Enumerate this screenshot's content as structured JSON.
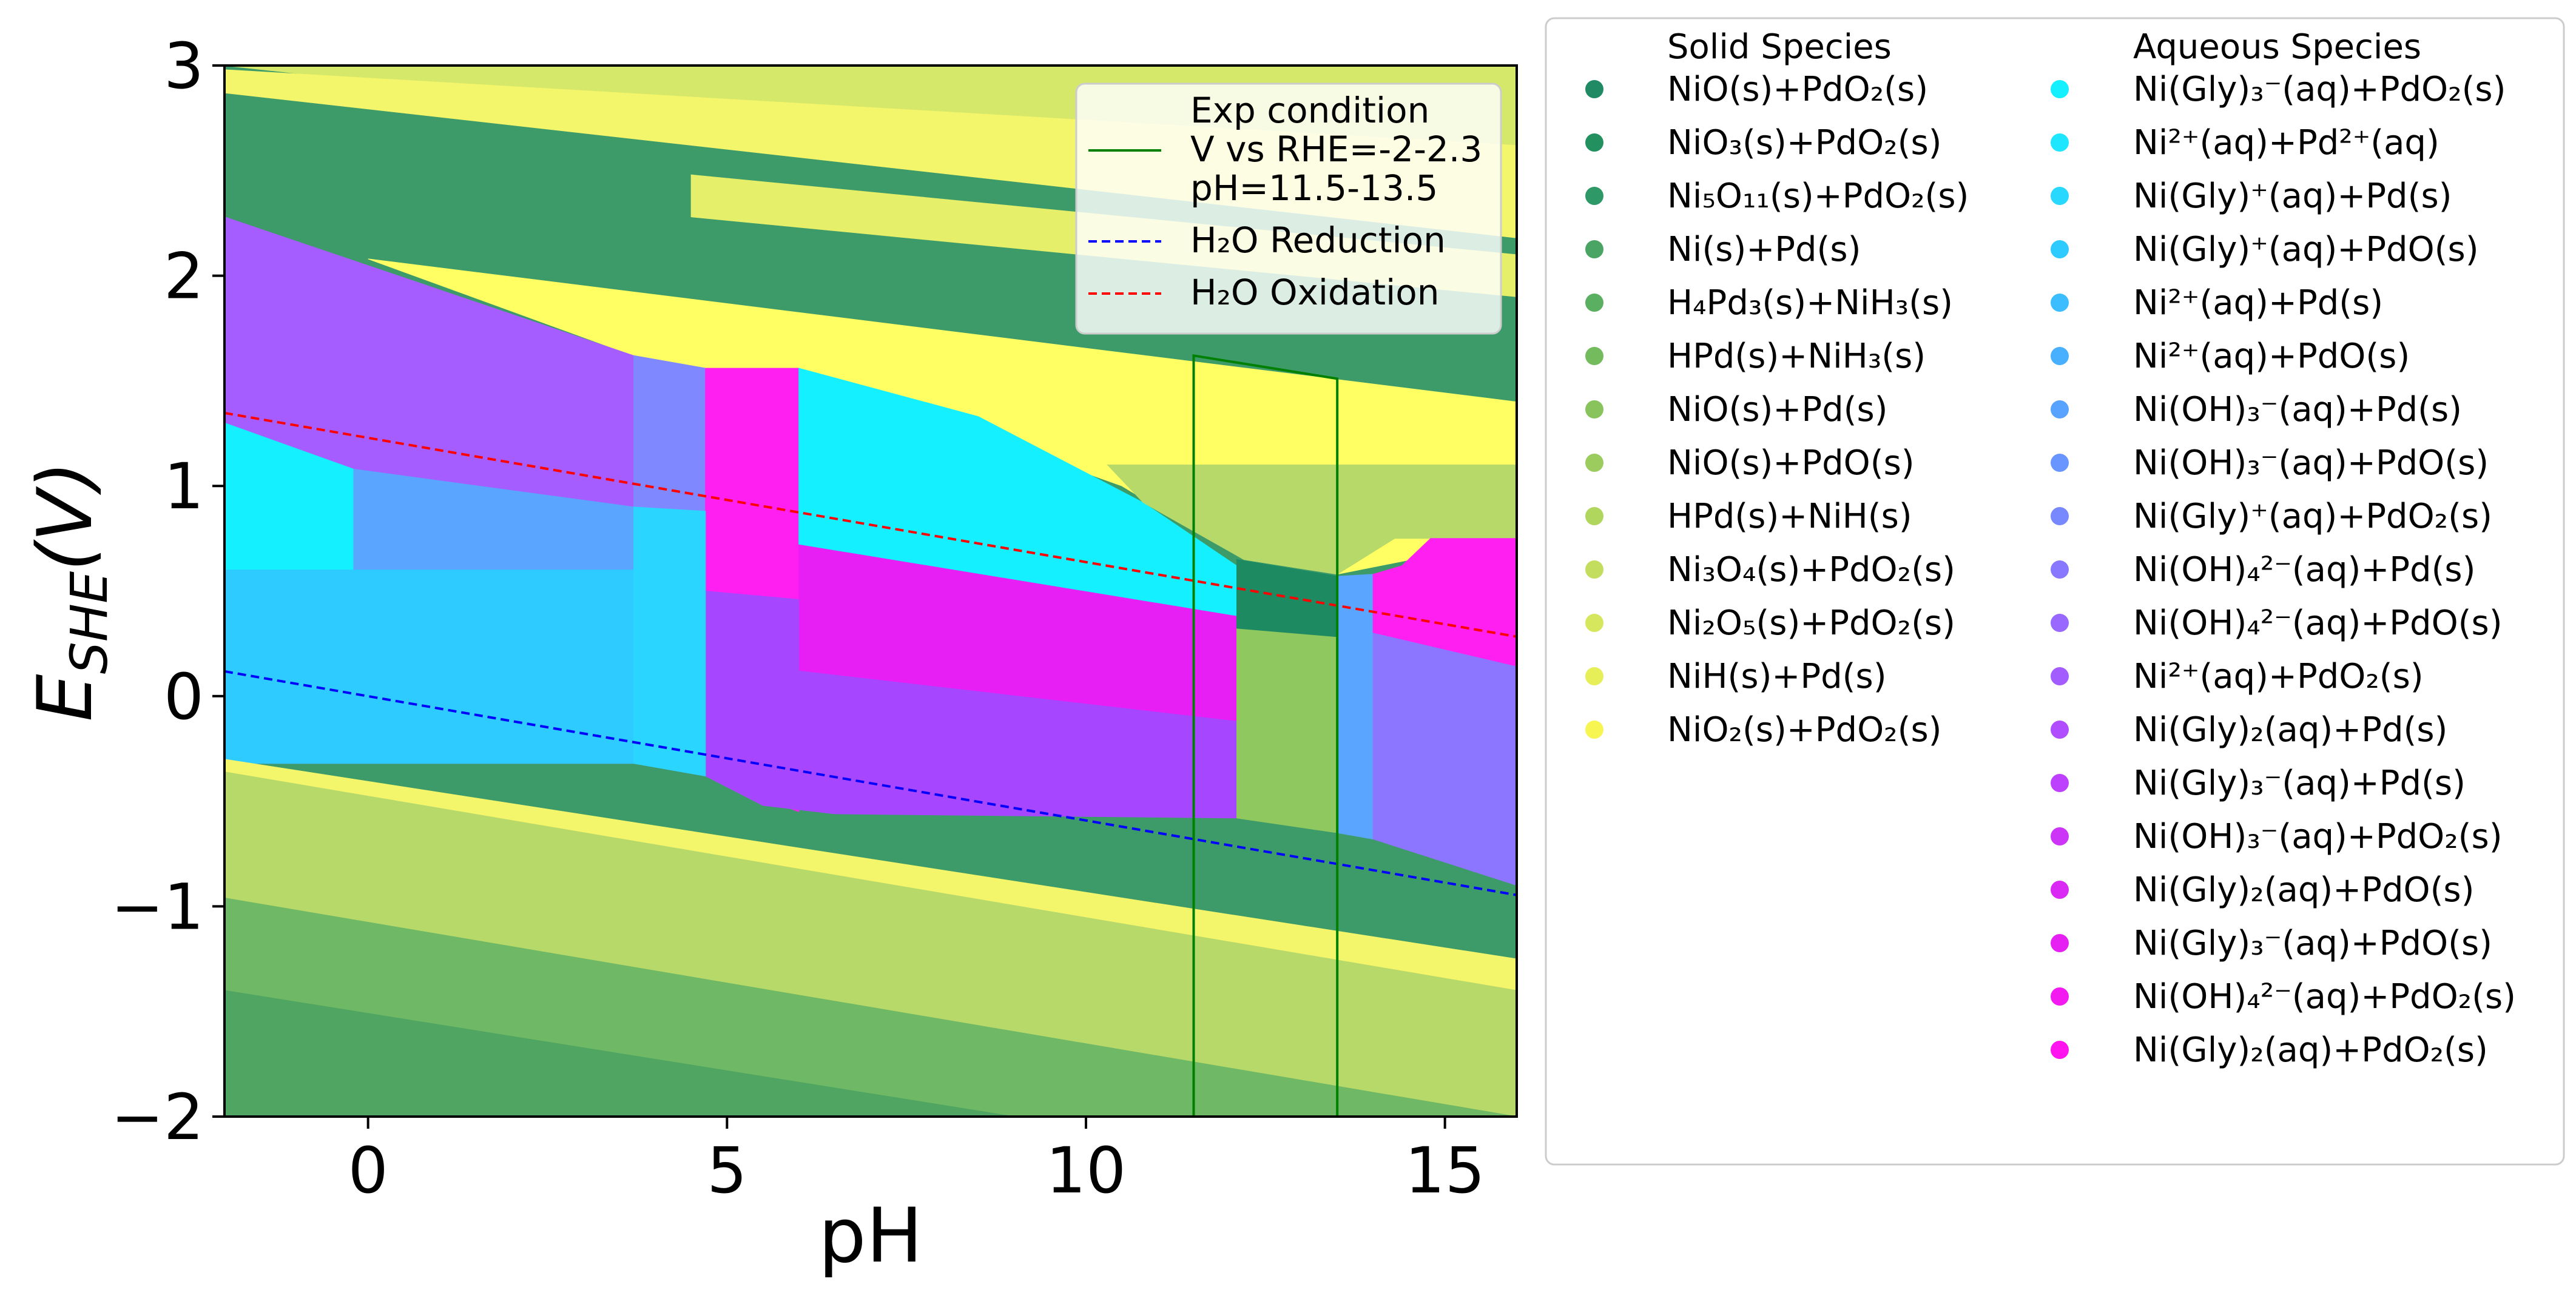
{
  "chart_data": {
    "type": "area",
    "xlabel": "pH",
    "ylabel_main": "E",
    "ylabel_sub": "SHE",
    "ylabel_tail": "(V)",
    "xlim": [
      -2,
      16
    ],
    "ylim": [
      -2,
      3
    ],
    "xticks": [
      {
        "v": 0,
        "t": "0"
      },
      {
        "v": 5,
        "t": "5"
      },
      {
        "v": 10,
        "t": "10"
      },
      {
        "v": 15,
        "t": "15"
      }
    ],
    "yticks": [
      {
        "v": -2,
        "t": "−2"
      },
      {
        "v": -1,
        "t": "−1"
      },
      {
        "v": 0,
        "t": "0"
      },
      {
        "v": 1,
        "t": "1"
      },
      {
        "v": 2,
        "t": "2"
      },
      {
        "v": 3,
        "t": "3"
      }
    ],
    "regions": [
      {
        "color": "#3d9b69",
        "pts": [
          [
            -2,
            3
          ],
          [
            16,
            3
          ],
          [
            16,
            -2
          ],
          [
            -2,
            -2
          ]
        ]
      },
      {
        "color": "#d6e86a",
        "pts": [
          [
            -2,
            3
          ],
          [
            16,
            3
          ],
          [
            16,
            2.33
          ],
          [
            -2,
            3
          ]
        ]
      },
      {
        "color": "#f3f56b",
        "pts": [
          [
            -2,
            2.98
          ],
          [
            16,
            2.62
          ],
          [
            16,
            2.18
          ],
          [
            -2,
            2.87
          ]
        ]
      },
      {
        "color": "#e5ef6a",
        "pts": [
          [
            4.5,
            2.48
          ],
          [
            16,
            2.1
          ],
          [
            16,
            1.9
          ],
          [
            4.5,
            2.28
          ]
        ]
      },
      {
        "color": "#ffff64",
        "pts": [
          [
            0,
            2.08
          ],
          [
            16,
            1.4
          ],
          [
            16,
            0.75
          ],
          [
            13.5,
            0.58
          ],
          [
            12.2,
            0.65
          ],
          [
            10.5,
            1.0
          ],
          [
            6,
            1.55
          ],
          [
            4.7,
            1.55
          ],
          [
            3.7,
            1.62
          ],
          [
            0,
            2.08
          ]
        ]
      },
      {
        "color": "#a65dff",
        "pts": [
          [
            -2,
            2.28
          ],
          [
            3.7,
            1.62
          ],
          [
            3.7,
            -0.32
          ],
          [
            -2,
            -0.32
          ]
        ]
      },
      {
        "color": "#8088ff",
        "pts": [
          [
            3.7,
            1.62
          ],
          [
            4.7,
            1.56
          ],
          [
            4.7,
            -0.38
          ],
          [
            3.7,
            -0.32
          ]
        ]
      },
      {
        "color": "#ff1ff0",
        "pts": [
          [
            4.7,
            1.56
          ],
          [
            6,
            1.56
          ],
          [
            6,
            -0.55
          ],
          [
            4.7,
            -0.38
          ]
        ]
      },
      {
        "color": "#14f0ff",
        "pts": [
          [
            6,
            1.56
          ],
          [
            8.5,
            1.33
          ],
          [
            10.8,
            0.92
          ],
          [
            12.1,
            0.62
          ],
          [
            12.1,
            0.38
          ],
          [
            6,
            0.72
          ]
        ]
      },
      {
        "color": "#b7d96a",
        "pts": [
          [
            10.3,
            1.1
          ],
          [
            16,
            1.1
          ],
          [
            16,
            0.75
          ],
          [
            14.3,
            0.75
          ],
          [
            13.5,
            0.58
          ],
          [
            12.2,
            0.65
          ],
          [
            10.8,
            0.92
          ]
        ]
      },
      {
        "color": "#e81ff5",
        "pts": [
          [
            6,
            0.72
          ],
          [
            12.1,
            0.38
          ],
          [
            12.1,
            -0.12
          ],
          [
            6,
            0.12
          ]
        ]
      },
      {
        "color": "#a646ff",
        "pts": [
          [
            4.7,
            0.5
          ],
          [
            6,
            0.46
          ],
          [
            6,
            0.12
          ],
          [
            12.1,
            -0.12
          ],
          [
            12.1,
            -0.58
          ],
          [
            6.5,
            -0.56
          ],
          [
            5.5,
            -0.52
          ],
          [
            4.7,
            -0.38
          ]
        ]
      },
      {
        "color": "#14f0ff",
        "pts": [
          [
            -2,
            1.3
          ],
          [
            -0.2,
            1.08
          ],
          [
            -0.2,
            0.6
          ],
          [
            -2,
            0.6
          ]
        ]
      },
      {
        "color": "#5aa5ff",
        "pts": [
          [
            -0.2,
            1.08
          ],
          [
            3.7,
            0.9
          ],
          [
            3.7,
            0.6
          ],
          [
            -0.2,
            0.6
          ]
        ]
      },
      {
        "color": "#2dcbff",
        "pts": [
          [
            -2,
            0.6
          ],
          [
            3.7,
            0.6
          ],
          [
            3.7,
            -0.32
          ],
          [
            -2,
            -0.32
          ]
        ]
      },
      {
        "color": "#2ad5ff",
        "pts": [
          [
            3.7,
            0.9
          ],
          [
            4.7,
            0.88
          ],
          [
            4.7,
            -0.38
          ],
          [
            3.7,
            -0.32
          ]
        ]
      },
      {
        "color": "#1d8a62",
        "pts": [
          [
            12.1,
            0.65
          ],
          [
            13.5,
            0.57
          ],
          [
            13.5,
            0.28
          ],
          [
            12.1,
            0.32
          ]
        ]
      },
      {
        "color": "#8fc85e",
        "pts": [
          [
            12.1,
            0.32
          ],
          [
            13.5,
            0.28
          ],
          [
            13.5,
            -0.65
          ],
          [
            12.1,
            -0.58
          ]
        ]
      },
      {
        "color": "#5aa5ff",
        "pts": [
          [
            13.5,
            0.57
          ],
          [
            14.0,
            0.58
          ],
          [
            14.0,
            -0.68
          ],
          [
            13.5,
            -0.65
          ]
        ]
      },
      {
        "color": "#a646ff",
        "pts": [
          [
            14.0,
            0.58
          ],
          [
            16,
            0.4
          ],
          [
            16,
            0.14
          ],
          [
            14.0,
            0.3
          ]
        ]
      },
      {
        "color": "#ff1ff0",
        "pts": [
          [
            14.0,
            0.58
          ],
          [
            14.4,
            0.62
          ],
          [
            14.8,
            0.75
          ],
          [
            16,
            0.75
          ],
          [
            16,
            0.14
          ],
          [
            14.0,
            0.3
          ]
        ]
      },
      {
        "color": "#8c75ff",
        "pts": [
          [
            14.0,
            0.3
          ],
          [
            16,
            0.14
          ],
          [
            16,
            -0.9
          ],
          [
            14.0,
            -0.68
          ]
        ]
      },
      {
        "color": "#f3f56b",
        "pts": [
          [
            -2,
            -0.3
          ],
          [
            16,
            -1.25
          ],
          [
            16,
            -1.4
          ],
          [
            -2,
            -0.36
          ]
        ]
      },
      {
        "color": "#b7d96a",
        "pts": [
          [
            -2,
            -0.36
          ],
          [
            16,
            -1.4
          ],
          [
            16,
            -2
          ],
          [
            -2,
            -2
          ]
        ]
      },
      {
        "color": "#6fb865",
        "pts": [
          [
            -2,
            -0.96
          ],
          [
            16,
            -2
          ],
          [
            -2,
            -2
          ]
        ]
      },
      {
        "color": "#4fa561",
        "pts": [
          [
            -2,
            -1.4
          ],
          [
            9,
            -2
          ],
          [
            -2,
            -2
          ]
        ]
      }
    ],
    "lines": [
      {
        "name": "H₂O Reduction",
        "color": "#0000ff",
        "dash": true,
        "pts": [
          [
            -2,
            0.118
          ],
          [
            16,
            -0.946
          ]
        ]
      },
      {
        "name": "H₂O Oxidation",
        "color": "#ff0000",
        "dash": true,
        "pts": [
          [
            -2,
            1.347
          ],
          [
            16,
            0.283
          ]
        ]
      },
      {
        "name": "Exp condition",
        "color": "#008000",
        "dash": false,
        "pts": [
          [
            11.5,
            -2
          ],
          [
            11.5,
            1.62
          ],
          [
            13.5,
            1.51
          ],
          [
            13.5,
            -2
          ]
        ]
      }
    ],
    "inner_legend": [
      {
        "lines": [
          "Exp condition",
          "V vs RHE=-2-2.3",
          "pH=11.5-13.5"
        ],
        "color": "#008000",
        "dash": false
      },
      {
        "lines": [
          "H₂O Reduction"
        ],
        "color": "#0000ff",
        "dash": true
      },
      {
        "lines": [
          "H₂O Oxidation"
        ],
        "color": "#ff0000",
        "dash": true
      }
    ],
    "legend": {
      "solid_title": "Solid Species",
      "aqueous_title": "Aqueous Species",
      "solid": [
        {
          "label": "NiO(s)+PdO₂(s)",
          "color": "#1f8a63"
        },
        {
          "label": "NiO₃(s)+PdO₂(s)",
          "color": "#23905f"
        },
        {
          "label": "Ni₅O₁₁(s)+PdO₂(s)",
          "color": "#2e9866"
        },
        {
          "label": "Ni(s)+Pd(s)",
          "color": "#4aa463"
        },
        {
          "label": "H₄Pd₃(s)+NiH₃(s)",
          "color": "#5aaf60"
        },
        {
          "label": "HPd(s)+NiH₃(s)",
          "color": "#74bb5d"
        },
        {
          "label": "NiO(s)+Pd(s)",
          "color": "#88c35b"
        },
        {
          "label": "NiO(s)+PdO(s)",
          "color": "#9ccb5e"
        },
        {
          "label": "HPd(s)+NiH(s)",
          "color": "#b0d65d"
        },
        {
          "label": "Ni₃O₄(s)+PdO₂(s)",
          "color": "#c3de5e"
        },
        {
          "label": "Ni₂O₅(s)+PdO₂(s)",
          "color": "#d6e75e"
        },
        {
          "label": "NiH(s)+Pd(s)",
          "color": "#e7ef58"
        },
        {
          "label": "NiO₂(s)+PdO₂(s)",
          "color": "#f7f552"
        }
      ],
      "aqueous": [
        {
          "label": "Ni(Gly)₃⁻(aq)+PdO₂(s)",
          "color": "#14f0ff"
        },
        {
          "label": "Ni²⁺(aq)+Pd²⁺(aq)",
          "color": "#1ee6ff"
        },
        {
          "label": "Ni(Gly)⁺(aq)+Pd(s)",
          "color": "#28d8ff"
        },
        {
          "label": "Ni(Gly)⁺(aq)+PdO(s)",
          "color": "#2dcbff"
        },
        {
          "label": "Ni²⁺(aq)+Pd(s)",
          "color": "#3cbdff"
        },
        {
          "label": "Ni²⁺(aq)+PdO(s)",
          "color": "#48b0ff"
        },
        {
          "label": "Ni(OH)₃⁻(aq)+Pd(s)",
          "color": "#58a3ff"
        },
        {
          "label": "Ni(OH)₃⁻(aq)+PdO(s)",
          "color": "#6895ff"
        },
        {
          "label": "Ni(Gly)⁺(aq)+PdO₂(s)",
          "color": "#7888ff"
        },
        {
          "label": "Ni(OH)₄²⁻(aq)+Pd(s)",
          "color": "#8878ff"
        },
        {
          "label": "Ni(OH)₄²⁻(aq)+PdO(s)",
          "color": "#9868ff"
        },
        {
          "label": "Ni²⁺(aq)+PdO₂(s)",
          "color": "#a25cff"
        },
        {
          "label": "Ni(Gly)₂(aq)+Pd(s)",
          "color": "#b04eff"
        },
        {
          "label": "Ni(Gly)₃⁻(aq)+Pd(s)",
          "color": "#be40ff"
        },
        {
          "label": "Ni(OH)₃⁻(aq)+PdO₂(s)",
          "color": "#cc34f8"
        },
        {
          "label": "Ni(Gly)₂(aq)+PdO(s)",
          "color": "#da28f5"
        },
        {
          "label": "Ni(Gly)₃⁻(aq)+PdO(s)",
          "color": "#e620f2"
        },
        {
          "label": "Ni(OH)₄²⁻(aq)+PdO₂(s)",
          "color": "#f21af0"
        },
        {
          "label": "Ni(Gly)₂(aq)+PdO₂(s)",
          "color": "#ff14ef"
        }
      ]
    }
  }
}
